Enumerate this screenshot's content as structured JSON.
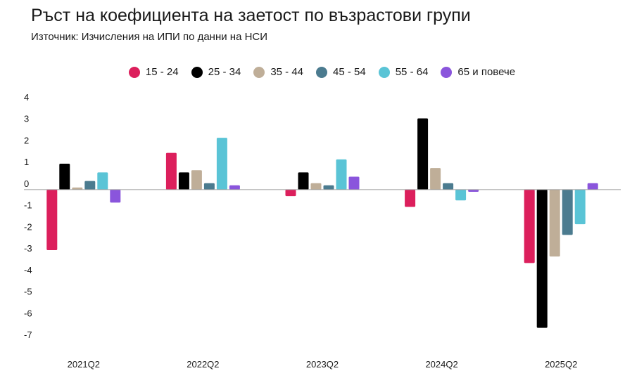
{
  "header": {
    "title": "Ръст на коефициента на заетост по възрастови групи",
    "subtitle": "Източник: Изчисления на ИПИ по данни на НСИ"
  },
  "chart_data": {
    "type": "bar",
    "title": "Ръст на коефициента на заетост по възрастови групи",
    "subtitle": "Източник: Изчисления на ИПИ по данни на НСИ",
    "xlabel": "",
    "ylabel": "",
    "ylim": [
      -7,
      4
    ],
    "yticks": [
      4,
      3,
      2,
      1,
      0,
      -1,
      -2,
      -3,
      -4,
      -5,
      -6,
      -7
    ],
    "grid": false,
    "legend_position": "top-center",
    "categories": [
      "2021Q2",
      "2022Q2",
      "2023Q2",
      "2024Q2",
      "2025Q2"
    ],
    "series": [
      {
        "name": "15 - 24",
        "color": "#dc1f5c",
        "values": [
          -2.8,
          1.7,
          -0.3,
          -0.8,
          -3.4
        ]
      },
      {
        "name": "25 - 34",
        "color": "#000000",
        "values": [
          1.2,
          0.8,
          0.8,
          3.3,
          -6.4
        ]
      },
      {
        "name": "35 - 44",
        "color": "#bfae98",
        "values": [
          0.1,
          0.9,
          0.3,
          1.0,
          -3.1
        ]
      },
      {
        "name": "45 - 54",
        "color": "#4b7b8f",
        "values": [
          0.4,
          0.3,
          0.2,
          0.3,
          -2.1
        ]
      },
      {
        "name": "55 - 64",
        "color": "#5ac4d6",
        "values": [
          0.8,
          2.4,
          1.4,
          -0.5,
          -1.6
        ]
      },
      {
        "name": "65 и повече",
        "color": "#8a55dc",
        "values": [
          -0.6,
          0.2,
          0.6,
          -0.1,
          0.3
        ]
      }
    ]
  }
}
